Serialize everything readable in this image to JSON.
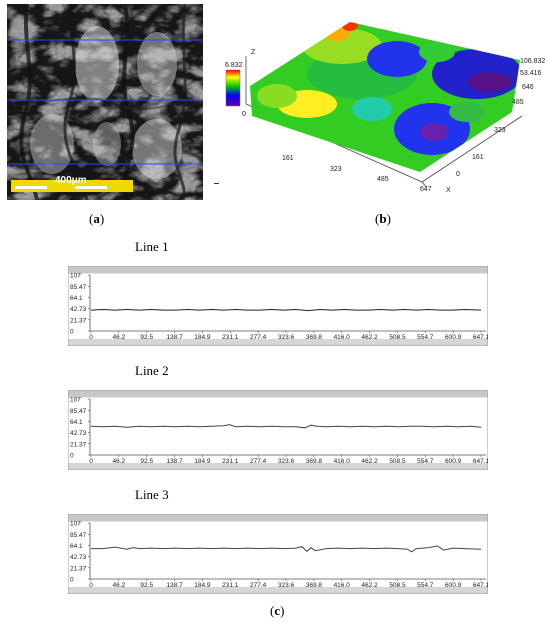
{
  "panel_a": {
    "scale_label": "400μm",
    "caption_letter": "a"
  },
  "panel_b": {
    "caption_letter": "b",
    "colorbar": {
      "max_label": "6.832",
      "min_label": "0"
    },
    "axis_z_label": "Z",
    "axis_x_label": "X",
    "z_ticks": [
      "106.832",
      "53.416"
    ],
    "x_ticks": [
      "161",
      "323",
      "485",
      "647"
    ],
    "y_ticks": [
      "646",
      "485",
      "323",
      "161",
      "0"
    ]
  },
  "panel_c": {
    "caption_letter": "c"
  },
  "chart_data": [
    {
      "type": "line",
      "title": "Line 1",
      "y_ticks": [
        "107",
        "85.47",
        "64.1",
        "42.73",
        "21.37",
        "0"
      ],
      "x_ticks": [
        "0",
        "46.2",
        "92.5",
        "138.7",
        "184.9",
        "231.1",
        "277.4",
        "323.6",
        "369.8",
        "416.0",
        "462.2",
        "508.5",
        "554.7",
        "600.9",
        "647.1"
      ],
      "ylim": [
        0,
        107
      ],
      "xlim": [
        0,
        647.1
      ],
      "series": [
        {
          "x": [
            0,
            20,
            40,
            60,
            80,
            100,
            120,
            140,
            160,
            180,
            200,
            220,
            240,
            260,
            280,
            300,
            320,
            340,
            360,
            380,
            400,
            420,
            440,
            460,
            480,
            500,
            520,
            540,
            560,
            580,
            600,
            620,
            647.1
          ],
          "values": [
            40,
            41,
            40,
            41,
            40,
            41,
            40,
            40,
            41,
            40,
            41,
            40,
            41,
            40,
            40,
            41,
            40,
            41,
            39,
            41,
            40,
            41,
            40,
            40,
            41,
            40,
            41,
            40,
            41,
            40,
            40,
            41,
            40
          ]
        }
      ]
    },
    {
      "type": "line",
      "title": "Line 2",
      "y_ticks": [
        "107",
        "85.47",
        "64.1",
        "42.73",
        "21.37",
        "0"
      ],
      "x_ticks": [
        "0",
        "46.2",
        "92.5",
        "138.7",
        "184.9",
        "231.1",
        "277.4",
        "323.6",
        "369.8",
        "416.0",
        "462.2",
        "508.5",
        "554.7",
        "600.9",
        "647.1"
      ],
      "ylim": [
        0,
        107
      ],
      "xlim": [
        0,
        647.1
      ],
      "series": [
        {
          "x": [
            0,
            20,
            40,
            60,
            80,
            100,
            120,
            140,
            160,
            180,
            200,
            220,
            230,
            240,
            260,
            280,
            300,
            320,
            340,
            355,
            365,
            375,
            390,
            410,
            430,
            450,
            470,
            490,
            510,
            530,
            550,
            570,
            590,
            610,
            630,
            647.1
          ],
          "values": [
            55,
            54,
            55,
            53,
            55,
            54,
            55,
            54,
            55,
            54,
            55,
            56,
            58,
            54,
            55,
            54,
            55,
            54,
            54,
            52,
            57,
            55,
            54,
            55,
            54,
            55,
            54,
            55,
            54,
            55,
            55,
            54,
            55,
            54,
            55,
            53
          ]
        }
      ]
    },
    {
      "type": "line",
      "title": "Line 3",
      "y_ticks": [
        "107",
        "85.47",
        "64.1",
        "42.73",
        "21.37",
        "0"
      ],
      "x_ticks": [
        "0",
        "46.2",
        "92.5",
        "138.7",
        "184.9",
        "231.1",
        "277.4",
        "323.6",
        "369.8",
        "416.0",
        "462.2",
        "508.5",
        "554.7",
        "600.9",
        "647.1"
      ],
      "ylim": [
        0,
        107
      ],
      "xlim": [
        0,
        647.1
      ],
      "series": [
        {
          "x": [
            0,
            20,
            40,
            60,
            70,
            80,
            100,
            120,
            140,
            160,
            180,
            200,
            220,
            240,
            260,
            280,
            300,
            320,
            340,
            350,
            358,
            365,
            372,
            390,
            410,
            430,
            450,
            470,
            490,
            510,
            525,
            532,
            540,
            560,
            575,
            585,
            600,
            620,
            647.1
          ],
          "values": [
            58,
            58,
            61,
            57,
            60,
            58,
            59,
            58,
            59,
            58,
            59,
            58,
            59,
            58,
            59,
            58,
            59,
            58,
            59,
            62,
            53,
            60,
            54,
            58,
            59,
            58,
            59,
            58,
            59,
            58,
            57,
            52,
            58,
            60,
            63,
            55,
            59,
            58,
            57
          ]
        }
      ]
    }
  ]
}
